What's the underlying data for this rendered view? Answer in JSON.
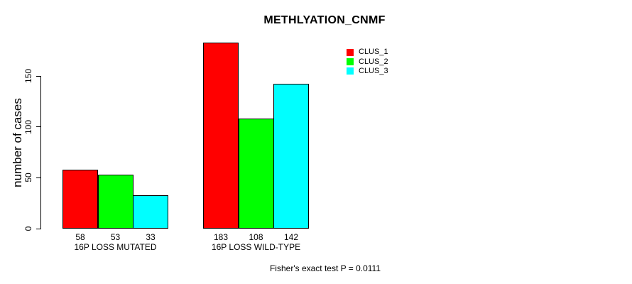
{
  "chart_data": {
    "type": "bar",
    "title": "METHLYATION_CNMF",
    "ylabel": "number of cases",
    "xlabel": "",
    "categories": [
      "16P LOSS MUTATED",
      "16P LOSS WILD-TYPE"
    ],
    "series": [
      {
        "name": "CLUS_1",
        "color": "#ff0000",
        "values": [
          58,
          183
        ]
      },
      {
        "name": "CLUS_2",
        "color": "#00ff00",
        "values": [
          53,
          108
        ]
      },
      {
        "name": "CLUS_3",
        "color": "#00ffff",
        "values": [
          33,
          142
        ]
      }
    ],
    "show_bar_values": true,
    "yticks": [
      0,
      50,
      100,
      150
    ],
    "ylim": [
      0,
      187
    ],
    "grid": false,
    "legend_position": "top-right",
    "annotation": "Fisher's exact test P = 0.0111",
    "axis_color": "#000000",
    "bar_border_color": "#000000",
    "background": "#ffffff"
  }
}
